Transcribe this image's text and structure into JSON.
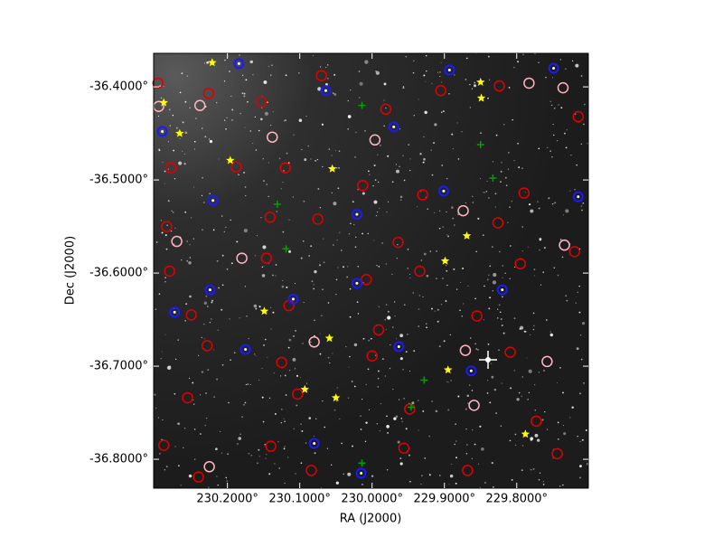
{
  "chart_data": {
    "type": "scatter",
    "xlabel": "RA (J2000)",
    "ylabel": "Dec (J2000)",
    "xlim": [
      230.302,
      229.701
    ],
    "ylim": [
      -36.831,
      -36.364
    ],
    "xticks": [
      {
        "value": 230.2,
        "label": "230.2000°"
      },
      {
        "value": 230.1,
        "label": "230.1000°"
      },
      {
        "value": 230.0,
        "label": "230.0000°"
      },
      {
        "value": 229.9,
        "label": "229.9000°"
      },
      {
        "value": 229.8,
        "label": "229.8000°"
      }
    ],
    "yticks": [
      {
        "value": -36.4,
        "label": "-36.4000°"
      },
      {
        "value": -36.5,
        "label": "-36.5000°"
      },
      {
        "value": -36.6,
        "label": "-36.6000°"
      },
      {
        "value": -36.7,
        "label": "-36.7000°"
      },
      {
        "value": -36.8,
        "label": "-36.8000°"
      }
    ],
    "series": [
      {
        "color": "#e00000",
        "marker": "circle",
        "x": [
          230.296,
          230.226,
          230.153,
          230.07,
          229.981,
          229.905,
          229.824,
          229.715,
          230.278,
          230.188,
          230.12,
          230.013,
          229.93,
          229.79,
          230.284,
          230.141,
          230.075,
          229.964,
          229.826,
          229.72,
          230.28,
          230.146,
          230.008,
          229.934,
          229.795,
          230.25,
          230.115,
          229.991,
          229.855,
          230.228,
          230.125,
          230.0,
          229.809,
          230.255,
          230.103,
          229.948,
          229.773,
          230.288,
          230.14,
          229.956,
          229.744,
          230.24,
          230.084,
          229.868
        ],
        "values": [
          -36.396,
          -36.407,
          -36.416,
          -36.388,
          -36.424,
          -36.404,
          -36.399,
          -36.432,
          -36.487,
          -36.486,
          -36.487,
          -36.506,
          -36.516,
          -36.514,
          -36.55,
          -36.54,
          -36.542,
          -36.567,
          -36.546,
          -36.577,
          -36.598,
          -36.584,
          -36.607,
          -36.598,
          -36.59,
          -36.645,
          -36.635,
          -36.661,
          -36.646,
          -36.678,
          -36.696,
          -36.689,
          -36.685,
          -36.734,
          -36.73,
          -36.746,
          -36.759,
          -36.785,
          -36.786,
          -36.788,
          -36.794,
          -36.819,
          -36.812,
          -36.812
        ]
      },
      {
        "color": "#ffb6c1",
        "marker": "circle",
        "x": [
          230.295,
          230.238,
          230.138,
          229.996,
          229.783,
          229.736,
          230.27,
          230.18,
          229.874,
          229.734,
          230.08,
          229.871,
          229.859,
          230.225,
          229.758
        ],
        "values": [
          -36.421,
          -36.42,
          -36.454,
          -36.457,
          -36.396,
          -36.401,
          -36.566,
          -36.584,
          -36.533,
          -36.57,
          -36.674,
          -36.683,
          -36.742,
          -36.808,
          -36.695
        ]
      },
      {
        "color": "#1a1aff",
        "marker": "dot-circle",
        "x": [
          230.29,
          230.184,
          230.064,
          229.97,
          229.893,
          229.749,
          230.22,
          230.021,
          229.901,
          229.715,
          230.224,
          230.109,
          230.021,
          229.82,
          230.273,
          229.963,
          229.863,
          230.175,
          230.08,
          230.015
        ],
        "values": [
          -36.448,
          -36.375,
          -36.404,
          -36.443,
          -36.382,
          -36.38,
          -36.522,
          -36.537,
          -36.512,
          -36.518,
          -36.618,
          -36.628,
          -36.611,
          -36.618,
          -36.642,
          -36.679,
          -36.705,
          -36.682,
          -36.783,
          -36.815
        ]
      },
      {
        "color": "#ffff00",
        "marker": "star",
        "x": [
          230.221,
          230.288,
          230.266,
          230.196,
          230.055,
          229.85,
          229.849,
          229.869,
          229.899,
          230.149,
          230.059,
          229.895,
          230.093,
          230.05,
          229.788
        ],
        "values": [
          -36.374,
          -36.417,
          -36.45,
          -36.479,
          -36.488,
          -36.395,
          -36.412,
          -36.56,
          -36.587,
          -36.641,
          -36.67,
          -36.704,
          -36.725,
          -36.734,
          -36.773
        ]
      },
      {
        "color": "#00a000",
        "marker": "plus",
        "x": [
          230.014,
          229.85,
          229.833,
          230.131,
          230.119,
          229.928,
          229.946,
          230.014
        ],
        "values": [
          -36.42,
          -36.462,
          -36.498,
          -36.526,
          -36.574,
          -36.715,
          -36.744,
          -36.804
        ]
      }
    ]
  }
}
